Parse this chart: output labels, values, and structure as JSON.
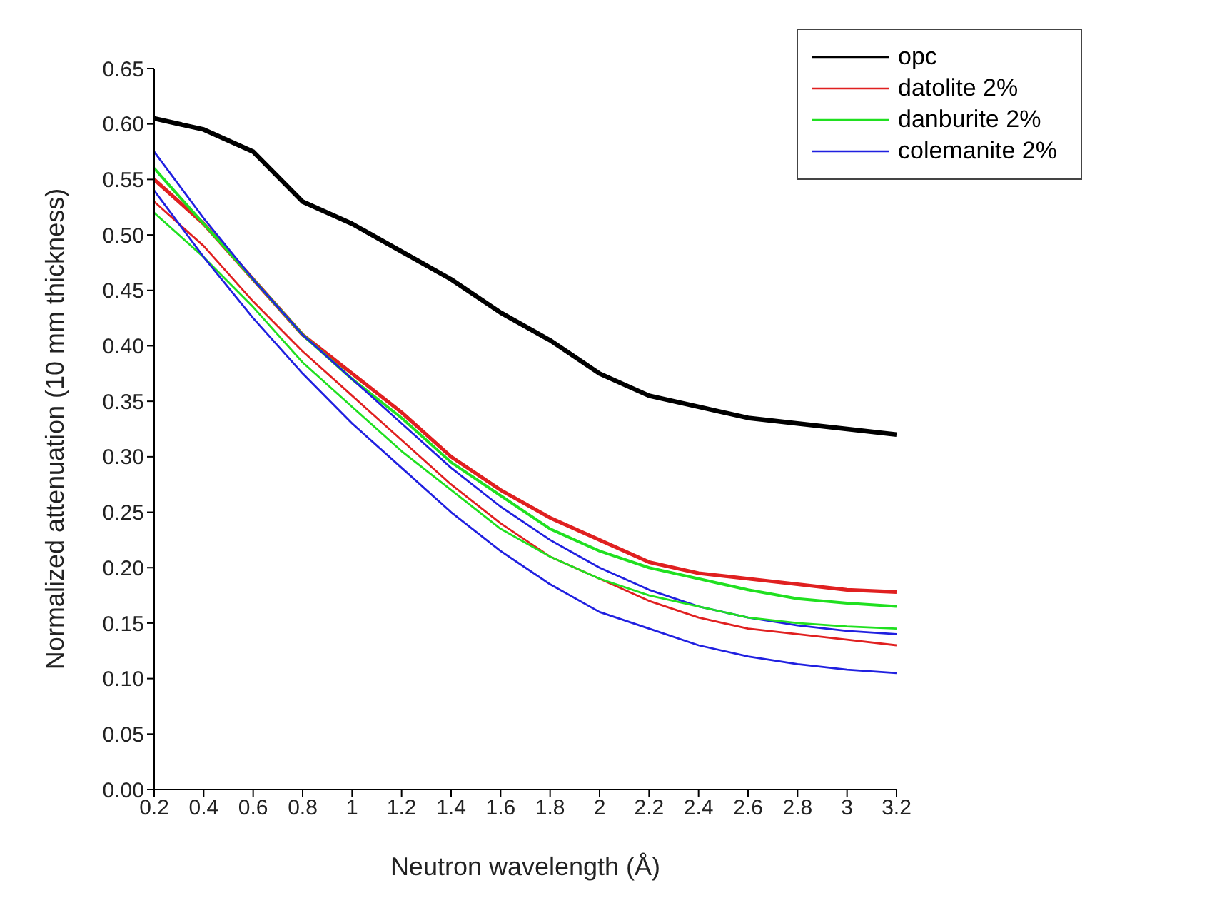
{
  "chart_data": {
    "type": "line",
    "xlabel": "Neutron wavelength (Å)",
    "ylabel": "Normalized attenuation (10 mm thickness)",
    "x": [
      0.2,
      0.4,
      0.6,
      0.8,
      1.0,
      1.2,
      1.4,
      1.6,
      1.8,
      2.0,
      2.2,
      2.4,
      2.6,
      2.8,
      3.0,
      3.2
    ],
    "series": [
      {
        "name": "opc",
        "color": "#000000",
        "values": [
          0.605,
          0.595,
          0.575,
          0.53,
          0.51,
          0.485,
          0.46,
          0.43,
          0.405,
          0.375,
          0.355,
          0.345,
          0.335,
          0.33,
          0.325,
          0.32
        ]
      },
      {
        "name": "datolite 2%",
        "color": "#e02020",
        "values": [
          0.55,
          0.51,
          0.46,
          0.41,
          0.375,
          0.34,
          0.3,
          0.27,
          0.245,
          0.225,
          0.205,
          0.195,
          0.19,
          0.185,
          0.18,
          0.178
        ]
      },
      {
        "name": "danburite 2%",
        "color": "#20e020",
        "values": [
          0.56,
          0.51,
          0.46,
          0.41,
          0.37,
          0.335,
          0.295,
          0.265,
          0.235,
          0.215,
          0.2,
          0.19,
          0.18,
          0.172,
          0.168,
          0.165
        ]
      },
      {
        "name": "colemanite 2%",
        "color": "#2020e0",
        "values": [
          0.575,
          0.515,
          0.46,
          0.41,
          0.37,
          0.33,
          0.29,
          0.255,
          0.225,
          0.2,
          0.18,
          0.165,
          0.155,
          0.148,
          0.143,
          0.14
        ]
      },
      {
        "color": "#e02020",
        "values": [
          0.53,
          0.49,
          0.44,
          0.395,
          0.355,
          0.315,
          0.275,
          0.24,
          0.21,
          0.19,
          0.17,
          0.155,
          0.145,
          0.14,
          0.135,
          0.13
        ]
      },
      {
        "color": "#20e020",
        "values": [
          0.52,
          0.48,
          0.435,
          0.385,
          0.345,
          0.305,
          0.27,
          0.235,
          0.21,
          0.19,
          0.175,
          0.165,
          0.155,
          0.15,
          0.147,
          0.145
        ]
      },
      {
        "color": "#2020e0",
        "values": [
          0.54,
          0.48,
          0.425,
          0.375,
          0.33,
          0.29,
          0.25,
          0.215,
          0.185,
          0.16,
          0.145,
          0.13,
          0.12,
          0.113,
          0.108,
          0.105
        ]
      }
    ],
    "xlim": [
      0.2,
      3.2
    ],
    "xticks": [
      0.2,
      0.4,
      0.6,
      0.8,
      1.0,
      1.2,
      1.4,
      1.6,
      1.8,
      2.0,
      2.2,
      2.4,
      2.6,
      2.8,
      3.0,
      3.2
    ],
    "ylim": [
      0,
      0.65
    ],
    "yticks": [
      {
        "value": 0,
        "label": "0.00"
      },
      {
        "value": 0.05,
        "label": "0.05"
      },
      {
        "value": 0.1,
        "label": "0.10"
      },
      {
        "value": 0.15,
        "label": "0.15"
      },
      {
        "value": 0.2,
        "label": "0.20"
      },
      {
        "value": 0.25,
        "label": "0.25"
      },
      {
        "value": 0.3,
        "label": "0.30"
      },
      {
        "value": 0.35,
        "label": "0.35"
      },
      {
        "value": 0.4,
        "label": "0.40"
      },
      {
        "value": 0.45,
        "label": "0.45"
      },
      {
        "value": 0.5,
        "label": "0.50"
      },
      {
        "value": 0.55,
        "label": "0.55"
      },
      {
        "value": 0.6,
        "label": "0.60"
      },
      {
        "value": 0.65,
        "label": "0.65"
      }
    ],
    "legend": "top right",
    "marker": "none",
    "line_style": "solid"
  }
}
